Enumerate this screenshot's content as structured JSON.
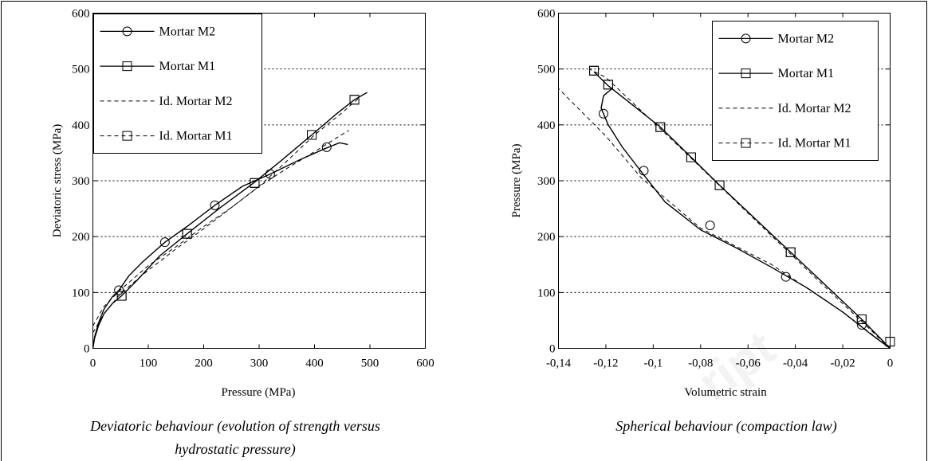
{
  "chart_data": [
    {
      "type": "line",
      "xlabel": "Pressure (MPa)",
      "ylabel": "Deviatoric stress (MPa)",
      "caption_line1": "Deviatoric behaviour (evolution of strength versus",
      "caption_line2": "hydrostatic pressure)",
      "xlim": [
        0,
        600
      ],
      "ylim": [
        0,
        600
      ],
      "xticks": [
        "0",
        "100",
        "200",
        "300",
        "400",
        "500",
        "600"
      ],
      "yticks": [
        "0",
        "100",
        "200",
        "300",
        "400",
        "500",
        "600"
      ],
      "grid": "horizontal dotted",
      "legend_position": "top-left",
      "series": [
        {
          "name": "Mortar M2",
          "style": "solid",
          "marker": "circle",
          "x": [
            0,
            3,
            10,
            20,
            35,
            47,
            65,
            90,
            130,
            170,
            220,
            270,
            320,
            370,
            420,
            445,
            460
          ],
          "y": [
            0,
            20,
            45,
            70,
            92,
            104,
            130,
            155,
            190,
            218,
            256,
            290,
            312,
            336,
            358,
            368,
            365
          ],
          "marker_x": [
            47,
            130,
            220,
            320,
            422
          ],
          "marker_y": [
            104,
            190,
            256,
            312,
            360
          ]
        },
        {
          "name": "Mortar M1",
          "style": "solid",
          "marker": "square",
          "x": [
            0,
            3,
            10,
            20,
            35,
            52,
            80,
            120,
            170,
            230,
            290,
            340,
            395,
            440,
            472,
            495
          ],
          "y": [
            0,
            18,
            40,
            62,
            80,
            94,
            122,
            165,
            205,
            252,
            296,
            336,
            382,
            420,
            445,
            458
          ],
          "marker_x": [
            52,
            170,
            292,
            395,
            472
          ],
          "marker_y": [
            94,
            205,
            296,
            382,
            445
          ]
        },
        {
          "name": "Id. Mortar M2",
          "style": "dashed",
          "marker": "none",
          "x": [
            0,
            20,
            50,
            100,
            150,
            200,
            250,
            300,
            350,
            400,
            450,
            462
          ],
          "y": [
            40,
            75,
            105,
            148,
            182,
            218,
            252,
            290,
            322,
            352,
            383,
            390
          ],
          "marker_x": [],
          "marker_y": []
        },
        {
          "name": "Id. Mortar M1",
          "style": "dashed",
          "marker": "square",
          "x": [
            0,
            20,
            50,
            100,
            150,
            200,
            250,
            300,
            350,
            400,
            450,
            480
          ],
          "y": [
            28,
            62,
            98,
            140,
            178,
            214,
            252,
            290,
            335,
            382,
            422,
            448
          ],
          "marker_x": [
            52,
            170,
            292,
            395,
            472
          ],
          "marker_y": [
            94,
            205,
            296,
            382,
            445
          ]
        }
      ]
    },
    {
      "type": "line",
      "xlabel": "Volumetric strain",
      "ylabel": "Pressure (MPa)",
      "caption_line1": "Spherical behaviour (compaction law)",
      "xlim": [
        -0.14,
        0
      ],
      "ylim": [
        0,
        600
      ],
      "xticks": [
        "-0,14",
        "-0,12",
        "-0,1",
        "-0,08",
        "-0,06",
        "-0,04",
        "-0,02",
        "0"
      ],
      "yticks": [
        "0",
        "100",
        "200",
        "300",
        "400",
        "500",
        "600"
      ],
      "grid": "horizontal dotted",
      "legend_position": "top-right",
      "series": [
        {
          "name": "Mortar M2",
          "style": "solid",
          "marker": "circle",
          "x": [
            0,
            -0.008,
            -0.02,
            -0.035,
            -0.05,
            -0.065,
            -0.08,
            -0.095,
            -0.105,
            -0.113,
            -0.119,
            -0.122,
            -0.121,
            -0.117
          ],
          "y": [
            0,
            25,
            65,
            108,
            145,
            180,
            212,
            262,
            316,
            360,
            400,
            430,
            452,
            466
          ],
          "marker_x": [
            -0.012,
            -0.044,
            -0.076,
            -0.104,
            -0.121
          ],
          "marker_y": [
            42,
            128,
            220,
            318,
            420
          ]
        },
        {
          "name": "Mortar M1",
          "style": "solid",
          "marker": "square",
          "x": [
            0,
            -0.012,
            -0.042,
            -0.072,
            -0.084,
            -0.097,
            -0.11,
            -0.119,
            -0.125
          ],
          "y": [
            0,
            52,
            172,
            292,
            342,
            396,
            440,
            470,
            495
          ],
          "marker_x": [
            0,
            -0.012,
            -0.042,
            -0.072,
            -0.084,
            -0.097,
            -0.119,
            -0.125
          ],
          "marker_y": [
            12,
            52,
            172,
            292,
            342,
            396,
            472,
            497
          ]
        },
        {
          "name": "Id. Mortar M2",
          "style": "dashed",
          "marker": "none",
          "x": [
            0,
            -0.02,
            -0.05,
            -0.08,
            -0.105,
            -0.12,
            -0.14
          ],
          "y": [
            0,
            65,
            150,
            215,
            305,
            380,
            465
          ],
          "marker_x": [],
          "marker_y": []
        },
        {
          "name": "Id. Mortar M1",
          "style": "dashed",
          "marker": "square",
          "x": [
            0,
            -0.03,
            -0.06,
            -0.09,
            -0.12,
            -0.127
          ],
          "y": [
            0,
            120,
            242,
            365,
            485,
            500
          ],
          "marker_x": [
            0,
            -0.012,
            -0.042,
            -0.072,
            -0.084,
            -0.097,
            -0.119,
            -0.125
          ],
          "marker_y": [
            12,
            52,
            172,
            292,
            342,
            396,
            472,
            497
          ]
        }
      ]
    }
  ],
  "watermark": "ript"
}
